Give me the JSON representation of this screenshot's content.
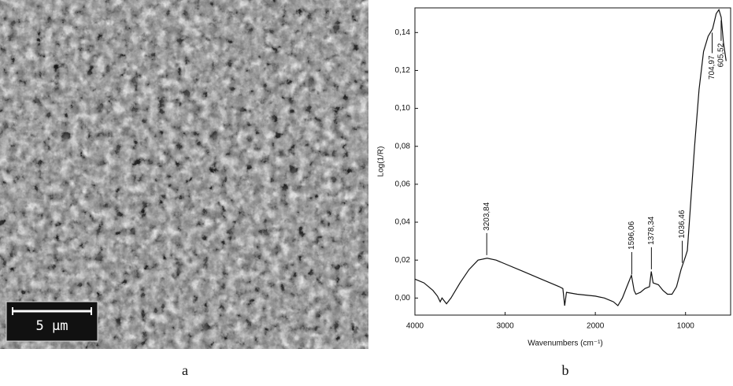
{
  "figure": {
    "labels": [
      "a",
      "b"
    ],
    "scale_bar": "5 μm"
  },
  "chart_data": {
    "type": "line",
    "xlabel": "Wavenumbers (cm⁻¹)",
    "ylabel": "Log(1/R)",
    "x": [
      4000,
      3900,
      3800,
      3750,
      3720,
      3700,
      3650,
      3600,
      3500,
      3400,
      3300,
      3200,
      3100,
      3000,
      2800,
      2600,
      2400,
      2360,
      2340,
      2320,
      2200,
      2000,
      1900,
      1800,
      1750,
      1700,
      1650,
      1600,
      1570,
      1550,
      1500,
      1450,
      1400,
      1380,
      1360,
      1300,
      1250,
      1200,
      1150,
      1100,
      1050,
      1000,
      980,
      950,
      900,
      850,
      800,
      750,
      700,
      660,
      630,
      605,
      580,
      550
    ],
    "series": [
      {
        "color": "#111111",
        "values": [
          0.01,
          0.008,
          0.004,
          0.001,
          -0.002,
          0.0,
          -0.003,
          0.0,
          0.008,
          0.015,
          0.02,
          0.021,
          0.02,
          0.018,
          0.014,
          0.01,
          0.006,
          0.005,
          -0.004,
          0.003,
          0.002,
          0.001,
          0.0,
          -0.002,
          -0.004,
          0.0,
          0.006,
          0.012,
          0.004,
          0.002,
          0.003,
          0.005,
          0.006,
          0.014,
          0.008,
          0.007,
          0.004,
          0.002,
          0.002,
          0.006,
          0.015,
          0.022,
          0.025,
          0.045,
          0.08,
          0.11,
          0.13,
          0.138,
          0.142,
          0.15,
          0.152,
          0.148,
          0.135,
          0.125
        ]
      }
    ],
    "xlim": [
      4000,
      500
    ],
    "ylim": [
      -0.009,
      0.153
    ],
    "xticks": [
      4000,
      3000,
      2000,
      1000
    ],
    "yticks": [
      {
        "value": 0.0,
        "label": "0,00"
      },
      {
        "value": 0.02,
        "label": "0,02"
      },
      {
        "value": 0.04,
        "label": "0,04"
      },
      {
        "value": 0.06,
        "label": "0,06"
      },
      {
        "value": 0.08,
        "label": "0,08"
      },
      {
        "value": 0.1,
        "label": "0,10"
      },
      {
        "value": 0.12,
        "label": "0,12"
      },
      {
        "value": 0.14,
        "label": "0,14"
      }
    ],
    "annotations": [
      {
        "x": 3203.84,
        "label": "3203,84"
      },
      {
        "x": 1596.06,
        "label": "1596,06"
      },
      {
        "x": 1378.34,
        "label": "1378,34"
      },
      {
        "x": 1036.46,
        "label": "1036,46"
      },
      {
        "x": 704.97,
        "label": "704,97"
      },
      {
        "x": 605.52,
        "label": "605,52"
      }
    ]
  }
}
